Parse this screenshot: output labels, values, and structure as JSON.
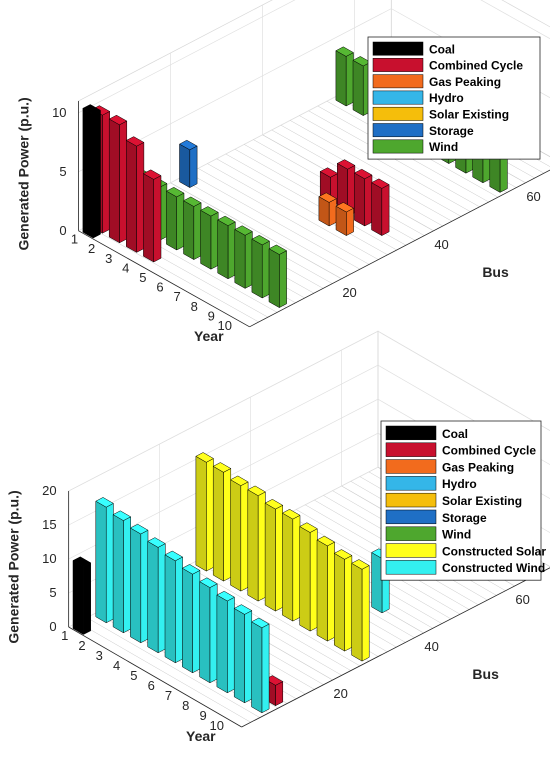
{
  "chart_data": [
    {
      "type": "bar3d",
      "panel": "top",
      "xlabel": "Bus",
      "ylabel": "Year",
      "zlabel": "Generated Power (p.u.)",
      "x_ticks": [
        "20",
        "40",
        "60"
      ],
      "year_ticks": [
        "1",
        "2",
        "3",
        "4",
        "5",
        "6",
        "7",
        "8",
        "9",
        "10"
      ],
      "z_ticks": [
        "0",
        "5",
        "10"
      ],
      "zlim": [
        0,
        11
      ],
      "legend_position": "top-right",
      "legend": [
        {
          "name": "Coal",
          "color": "#000000"
        },
        {
          "name": "Combined Cycle",
          "color": "#c8102e"
        },
        {
          "name": "Gas Peaking",
          "color": "#f26b1d"
        },
        {
          "name": "Hydro",
          "color": "#34b6e8"
        },
        {
          "name": "Solar Existing",
          "color": "#f5be0b"
        },
        {
          "name": "Storage",
          "color": "#1f6fc5"
        },
        {
          "name": "Wind",
          "color": "#4ea72e"
        }
      ],
      "series": [
        {
          "name": "Coal",
          "bus": 1,
          "values": [
            10.5,
            0,
            0,
            0,
            0,
            0,
            0,
            0,
            0,
            0
          ]
        },
        {
          "name": "Combined Cycle",
          "bus": 3,
          "values": [
            10,
            10,
            9,
            7,
            0,
            0,
            0,
            0,
            0,
            0
          ]
        },
        {
          "name": "Wind",
          "bus": 8,
          "values": [
            4.5,
            4.5,
            4.5,
            4.5,
            4.5,
            4.5,
            4.5,
            4.5,
            4.5,
            4.5
          ]
        },
        {
          "name": "Storage",
          "bus": 22,
          "values": [
            3.2,
            0,
            0,
            0,
            0,
            0,
            0,
            0,
            0,
            0
          ]
        },
        {
          "name": "Gas Peaking",
          "bus": 30,
          "values": [
            0,
            0,
            0,
            0,
            0,
            0,
            2,
            2,
            0,
            0
          ]
        },
        {
          "name": "Combined Cycle",
          "bus": 34,
          "values": [
            0,
            0,
            0,
            0,
            0,
            2.5,
            4,
            4,
            4,
            0
          ]
        },
        {
          "name": "Wind",
          "bus": 56,
          "values": [
            4.2,
            4.2,
            4.2,
            4.2,
            4.2,
            4.2,
            4.2,
            4.2,
            4.2,
            4.2
          ]
        }
      ]
    },
    {
      "type": "bar3d",
      "panel": "bottom",
      "xlabel": "Bus",
      "ylabel": "Year",
      "zlabel": "Generated Power (p.u.)",
      "x_ticks": [
        "20",
        "40",
        "60"
      ],
      "year_ticks": [
        "1",
        "2",
        "3",
        "4",
        "5",
        "6",
        "7",
        "8",
        "9",
        "10"
      ],
      "z_ticks": [
        "0",
        "5",
        "10",
        "15",
        "20"
      ],
      "zlim": [
        0,
        20
      ],
      "legend_position": "top-right",
      "legend": [
        {
          "name": "Coal",
          "color": "#000000"
        },
        {
          "name": "Combined Cycle",
          "color": "#c8102e"
        },
        {
          "name": "Gas Peaking",
          "color": "#f26b1d"
        },
        {
          "name": "Hydro",
          "color": "#34b6e8"
        },
        {
          "name": "Solar Existing",
          "color": "#f5be0b"
        },
        {
          "name": "Storage",
          "color": "#1f6fc5"
        },
        {
          "name": "Wind",
          "color": "#4ea72e"
        },
        {
          "name": "Constructed Solar",
          "color": "#ffff1a"
        },
        {
          "name": "Constructed Wind",
          "color": "#33f0f0"
        }
      ],
      "series": [
        {
          "name": "Coal",
          "bus": 1,
          "values": [
            10,
            0,
            0,
            0,
            0,
            0,
            0,
            0,
            0,
            0
          ]
        },
        {
          "name": "Constructed Wind",
          "bus": 6,
          "values": [
            17,
            16.5,
            16,
            15.5,
            15,
            14.5,
            14,
            13.5,
            13,
            12.5
          ]
        },
        {
          "name": "Combined Cycle",
          "bus": 9,
          "values": [
            0,
            0,
            0,
            0,
            0,
            0,
            0,
            0,
            3,
            3
          ]
        },
        {
          "name": "Constructed Solar",
          "bus": 28,
          "values": [
            16,
            16,
            15.5,
            15.5,
            15,
            15,
            14.5,
            14,
            13.5,
            13.5
          ]
        },
        {
          "name": "Constructed Wind",
          "bus": 40,
          "values": [
            0,
            0,
            0,
            0,
            0,
            0,
            0,
            8,
            0,
            0
          ]
        }
      ]
    }
  ]
}
